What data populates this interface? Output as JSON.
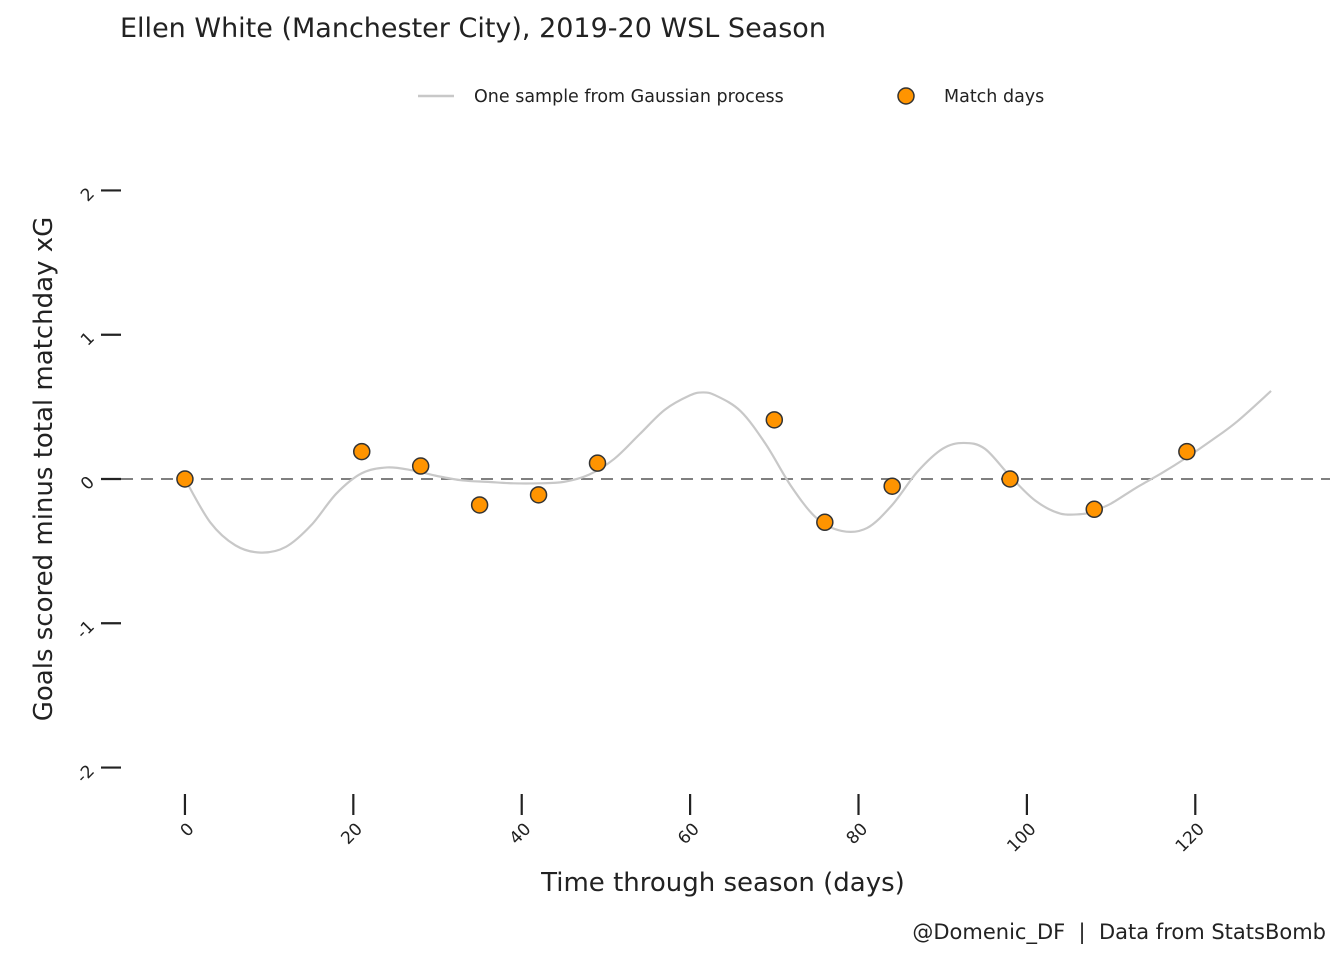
{
  "chart_data": {
    "type": "scatter",
    "title": "Ellen White (Manchester City), 2019-20 WSL Season",
    "xlabel": "Time through season (days)",
    "ylabel": "Goals scored minus total matchday xG",
    "caption": "@Domenic_DF  |  Data from StatsBomb",
    "xlim": [
      -7,
      136
    ],
    "ylim": [
      -2.1,
      2.1
    ],
    "x_ticks": [
      0,
      20,
      40,
      60,
      80,
      100,
      120
    ],
    "x_tick_labels": [
      "0",
      "20",
      "40",
      "60",
      "80",
      "100",
      "120"
    ],
    "y_ticks": [
      -2,
      -1,
      0,
      1,
      2
    ],
    "y_tick_labels": [
      "-2",
      "-1",
      "0",
      "1",
      "2"
    ],
    "legend": {
      "placement": "top-center",
      "entries": [
        "One sample from Gaussian process",
        "Match days"
      ]
    },
    "reference_line": {
      "y": 0,
      "style": "dashed",
      "color": "#808080"
    },
    "series": [
      {
        "name": "One sample from Gaussian process",
        "kind": "line",
        "color": "#c8c8c8",
        "x": [
          0,
          3,
          6,
          9,
          12,
          15,
          18,
          21,
          24,
          27,
          30,
          33,
          36,
          39,
          42,
          45,
          48,
          51,
          54,
          57,
          60,
          61.5,
          63,
          66,
          69,
          72,
          75,
          78,
          81,
          84,
          87,
          90,
          92.5,
          95,
          98,
          101,
          104,
          107,
          108,
          110,
          113,
          116,
          119,
          122,
          125,
          129
        ],
        "y": [
          0.0,
          -0.3,
          -0.46,
          -0.51,
          -0.47,
          -0.32,
          -0.1,
          0.04,
          0.08,
          0.06,
          0.02,
          -0.01,
          -0.02,
          -0.03,
          -0.03,
          -0.02,
          0.03,
          0.14,
          0.31,
          0.48,
          0.58,
          0.6,
          0.58,
          0.47,
          0.24,
          -0.05,
          -0.27,
          -0.36,
          -0.34,
          -0.18,
          0.05,
          0.21,
          0.25,
          0.21,
          0.02,
          -0.15,
          -0.24,
          -0.24,
          -0.22,
          -0.17,
          -0.06,
          0.04,
          0.15,
          0.27,
          0.4,
          0.61
        ]
      },
      {
        "name": "Match days",
        "kind": "scatter",
        "color": "#ff9400",
        "x": [
          0,
          21,
          28,
          35,
          42,
          49,
          70,
          76,
          84,
          98,
          108,
          119
        ],
        "y": [
          0.0,
          0.19,
          0.09,
          -0.18,
          -0.11,
          0.11,
          0.41,
          -0.3,
          -0.05,
          0.0,
          -0.21,
          0.19
        ]
      }
    ]
  }
}
